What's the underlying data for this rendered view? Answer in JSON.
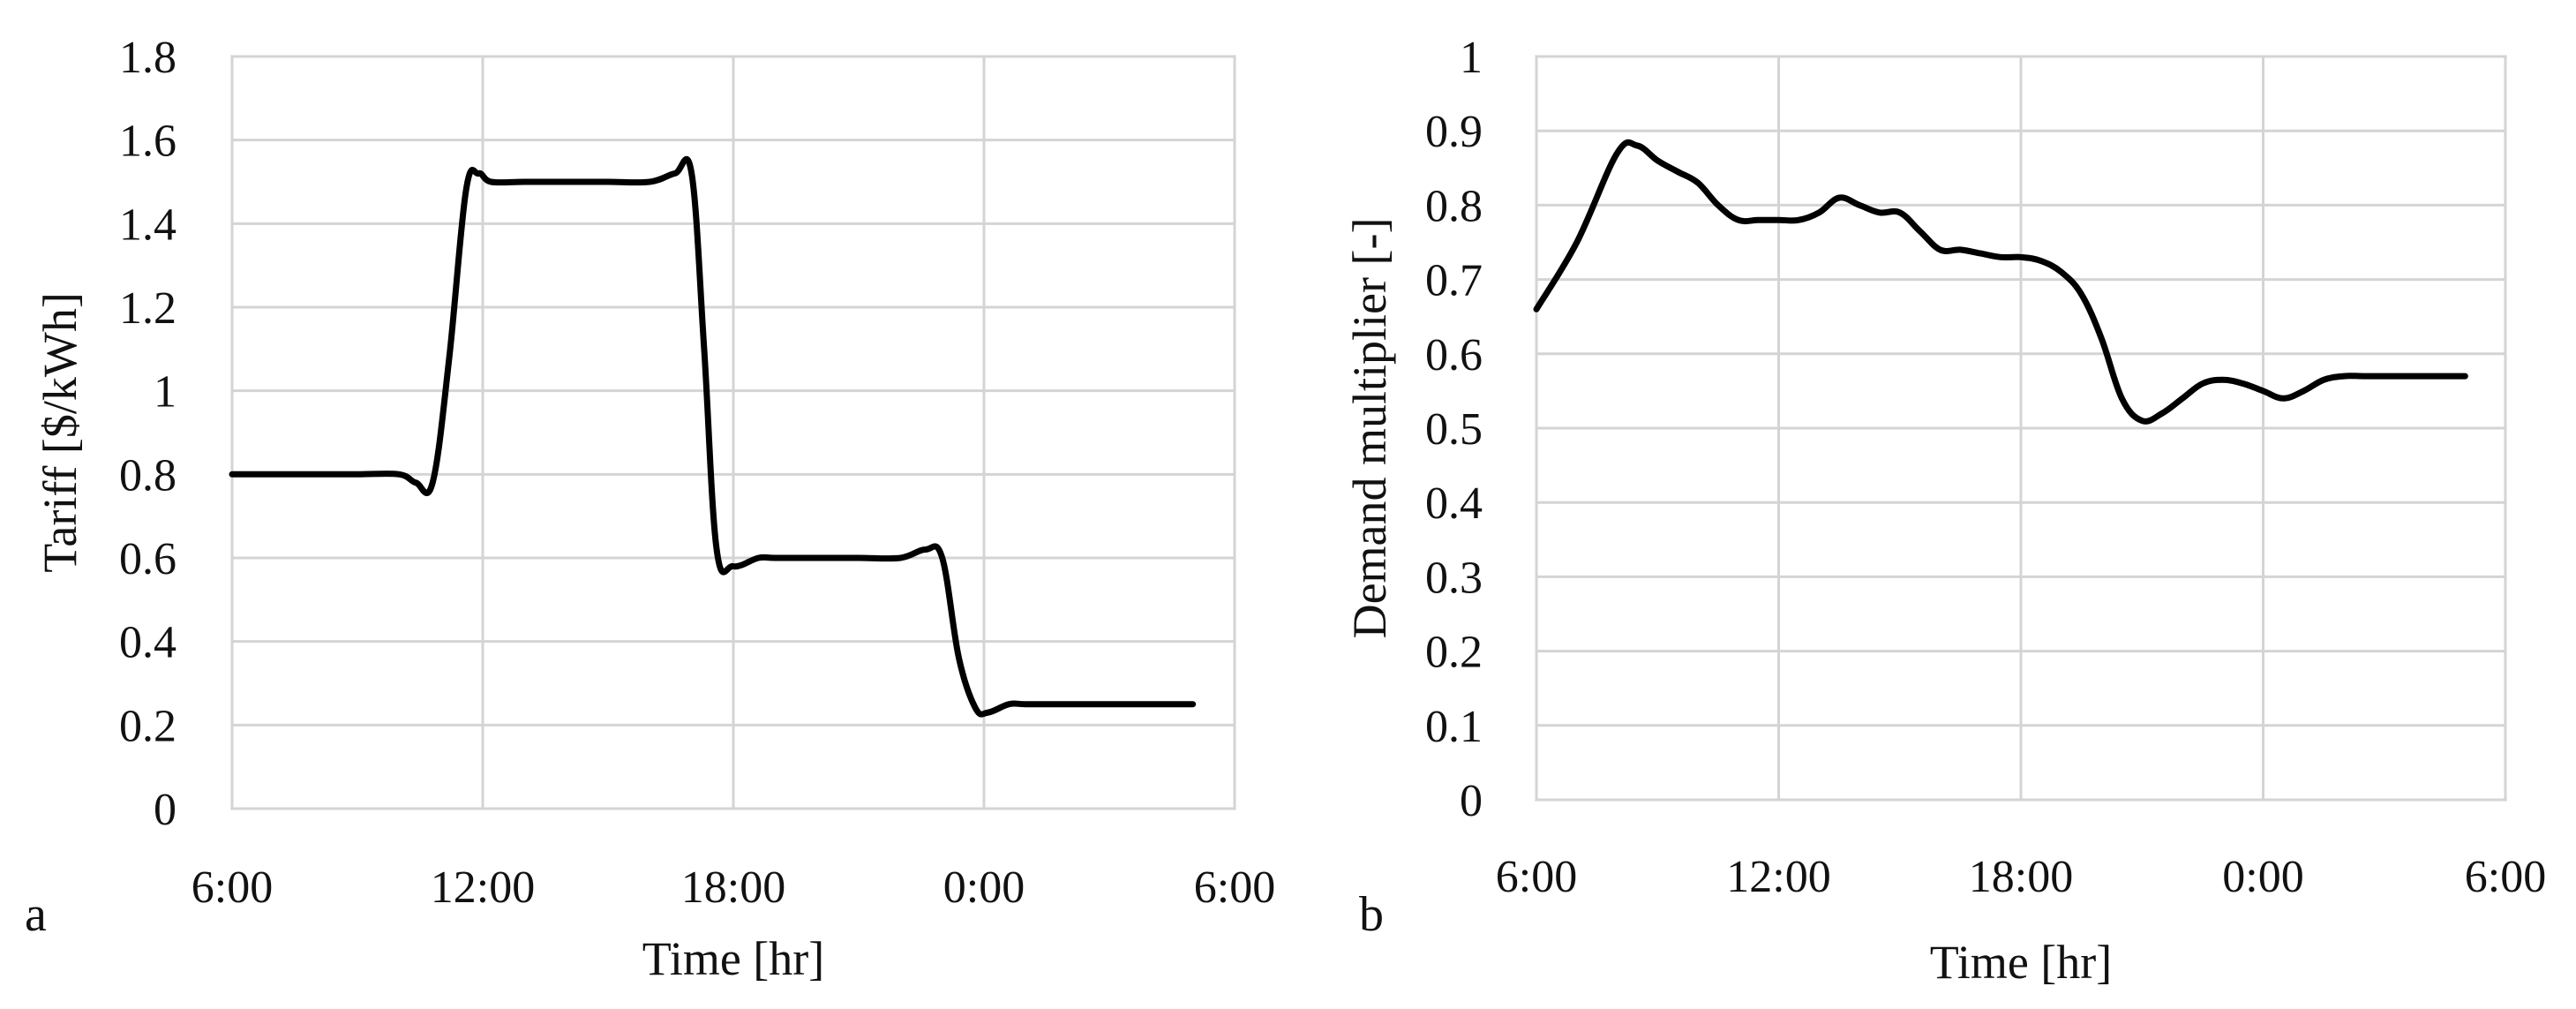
{
  "chart_data": [
    {
      "type": "line",
      "panel_label": "a",
      "xlabel": "Time [hr]",
      "ylabel": "Tariff [$/kWh]",
      "x_ticks": [
        "6:00",
        "12:00",
        "18:00",
        "0:00",
        "6:00"
      ],
      "x_tick_hours": [
        0,
        6,
        12,
        18,
        24
      ],
      "y_ticks": [
        "0",
        "0.2",
        "0.4",
        "0.6",
        "0.8",
        "1",
        "1.2",
        "1.4",
        "1.6",
        "1.8"
      ],
      "ylim": [
        0,
        1.8
      ],
      "xlim_hours_from_6am": [
        0,
        24
      ],
      "grid": true,
      "series": [
        {
          "color": "#000000",
          "x_hours_from_6am": [
            0,
            1,
            2,
            3,
            4,
            4.4,
            4.8,
            5.2,
            5.6,
            5.9,
            6.2,
            7,
            8,
            9,
            10,
            10.6,
            11,
            11.3,
            11.6,
            12,
            12.6,
            13,
            14,
            15,
            16,
            16.6,
            17,
            17.4,
            17.8,
            18.1,
            18.6,
            19,
            20,
            21,
            22,
            23
          ],
          "y": [
            0.8,
            0.8,
            0.8,
            0.8,
            0.8,
            0.78,
            0.78,
            1.08,
            1.48,
            1.52,
            1.5,
            1.5,
            1.5,
            1.5,
            1.5,
            1.52,
            1.52,
            1.1,
            0.62,
            0.58,
            0.6,
            0.6,
            0.6,
            0.6,
            0.6,
            0.62,
            0.6,
            0.36,
            0.24,
            0.23,
            0.25,
            0.25,
            0.25,
            0.25,
            0.25,
            0.25
          ]
        }
      ]
    },
    {
      "type": "line",
      "panel_label": "b",
      "xlabel": "Time [hr]",
      "ylabel": "Demand multiplier [-]",
      "x_ticks": [
        "6:00",
        "12:00",
        "18:00",
        "0:00",
        "6:00"
      ],
      "x_tick_hours": [
        0,
        6,
        12,
        18,
        24
      ],
      "y_ticks": [
        "0",
        "0.1",
        "0.2",
        "0.3",
        "0.4",
        "0.5",
        "0.6",
        "0.7",
        "0.8",
        "0.9",
        "1"
      ],
      "ylim": [
        0,
        1
      ],
      "xlim_hours_from_6am": [
        0,
        24
      ],
      "grid": true,
      "series": [
        {
          "color": "#000000",
          "x_hours_from_6am": [
            0,
            1,
            2,
            2.5,
            3,
            3.5,
            4,
            4.5,
            5,
            5.5,
            6,
            6.5,
            7,
            7.5,
            8,
            8.5,
            9,
            9.5,
            10,
            10.5,
            11,
            11.5,
            12,
            12.5,
            13,
            13.5,
            14,
            14.5,
            15,
            15.5,
            16,
            16.5,
            17,
            17.5,
            18,
            18.5,
            19,
            19.5,
            20,
            20.5,
            21,
            21.5,
            22,
            22.5,
            23
          ],
          "y": [
            0.66,
            0.75,
            0.87,
            0.88,
            0.86,
            0.845,
            0.83,
            0.8,
            0.78,
            0.78,
            0.78,
            0.78,
            0.79,
            0.81,
            0.8,
            0.79,
            0.79,
            0.765,
            0.74,
            0.74,
            0.735,
            0.73,
            0.73,
            0.725,
            0.71,
            0.68,
            0.62,
            0.54,
            0.51,
            0.52,
            0.54,
            0.56,
            0.565,
            0.56,
            0.55,
            0.54,
            0.55,
            0.565,
            0.57,
            0.57,
            0.57,
            0.57,
            0.57,
            0.57,
            0.57
          ]
        }
      ]
    }
  ]
}
